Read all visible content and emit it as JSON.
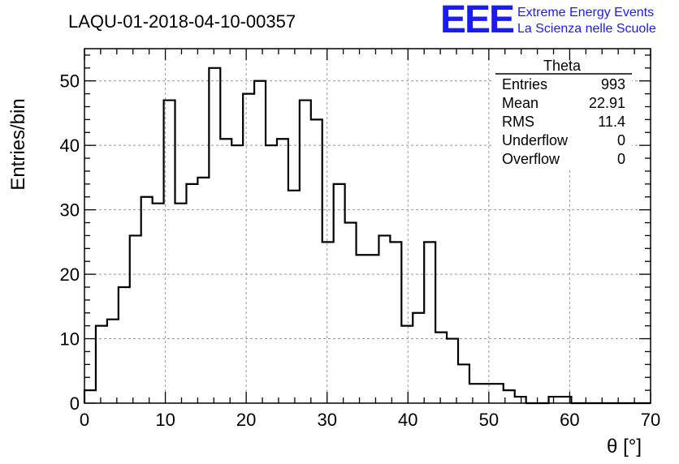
{
  "title": "LAQU-01-2018-04-10-00357",
  "logo": {
    "mark": "EEE",
    "line1": "Extreme Energy Events",
    "line2": "La Scienza nelle Scuole",
    "color": "#1a1aff"
  },
  "stats_box": {
    "name": "Theta",
    "rows": [
      {
        "label": "Entries",
        "value": "993"
      },
      {
        "label": "Mean",
        "value": "22.91"
      },
      {
        "label": "RMS",
        "value": "11.4"
      },
      {
        "label": "Underflow",
        "value": "0"
      },
      {
        "label": "Overflow",
        "value": "0"
      }
    ]
  },
  "chart_data": {
    "type": "bar",
    "histogram": true,
    "xlabel": "θ [°]",
    "ylabel": "Entries/bin",
    "xlim": [
      0,
      70
    ],
    "ylim": [
      0,
      55
    ],
    "xticks": [
      0,
      10,
      20,
      30,
      40,
      50,
      60,
      70
    ],
    "yticks": [
      0,
      10,
      20,
      30,
      40,
      50
    ],
    "grid": true,
    "bin_width": 1.4,
    "bin_edges_start": 0,
    "values": [
      2,
      12,
      13,
      18,
      26,
      32,
      31,
      47,
      31,
      34,
      35,
      52,
      41,
      40,
      48,
      50,
      40,
      41,
      33,
      47,
      44,
      25,
      34,
      28,
      23,
      23,
      26,
      25,
      12,
      14,
      25,
      11,
      10,
      6,
      3,
      3,
      3,
      2,
      1,
      0,
      0,
      1,
      1,
      0,
      0,
      0,
      0,
      0,
      0,
      0
    ]
  }
}
